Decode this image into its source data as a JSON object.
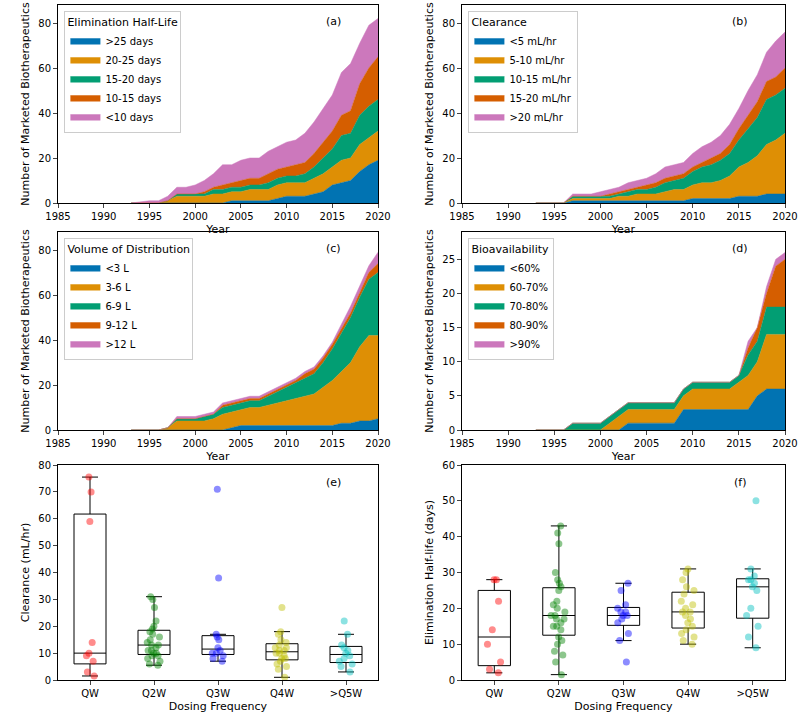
{
  "chart_data": [
    {
      "type": "area",
      "stacked": true,
      "legend": "upper left",
      "legend_title": "Elimination Half-Life",
      "annotations": [
        "(a)"
      ],
      "x_label": "Year",
      "y_label": "Number of Marketed Biotherapeutics",
      "grid": false,
      "x": [
        1993,
        1994,
        1995,
        1996,
        1997,
        1998,
        1999,
        2000,
        2001,
        2002,
        2003,
        2004,
        2005,
        2006,
        2007,
        2008,
        2009,
        2010,
        2011,
        2012,
        2013,
        2014,
        2015,
        2016,
        2017,
        2018,
        2019,
        2020
      ],
      "xlim": [
        1985,
        2020
      ],
      "xticks": [
        1985,
        1990,
        1995,
        2000,
        2005,
        2010,
        2015,
        2020
      ],
      "ylim": [
        0,
        88
      ],
      "yticks": [
        0,
        20,
        40,
        60,
        80
      ],
      "series": [
        {
          "name": ">25 days",
          "color": "#0173b2",
          "values": [
            0,
            0,
            0,
            0,
            0,
            0,
            0,
            0,
            0,
            0,
            0,
            1,
            1,
            1,
            1,
            1,
            2,
            3,
            3,
            3,
            4,
            5,
            8,
            9,
            10,
            14,
            17,
            19
          ]
        },
        {
          "name": "20-25 days",
          "color": "#de8f05",
          "values": [
            0,
            0,
            0,
            0,
            1,
            3,
            3,
            3,
            3,
            4,
            4,
            4,
            4,
            5,
            5,
            5,
            6,
            6,
            6,
            6,
            7,
            8,
            8,
            10,
            10,
            12,
            12,
            13
          ]
        },
        {
          "name": "15-20 days",
          "color": "#029e73",
          "values": [
            0,
            0,
            0,
            0,
            0,
            1,
            1,
            1,
            1,
            2,
            2,
            2,
            2,
            2,
            2,
            3,
            3,
            3,
            3,
            4,
            5,
            7,
            8,
            11,
            11,
            13,
            14,
            14
          ]
        },
        {
          "name": "10-15 days",
          "color": "#d55e00",
          "values": [
            0,
            0,
            0,
            0,
            0,
            0,
            0,
            0,
            1,
            1,
            2,
            2,
            3,
            3,
            3,
            4,
            4,
            4,
            5,
            5,
            6,
            7,
            8,
            9,
            10,
            14,
            17,
            19
          ]
        },
        {
          "name": "<10 days",
          "color": "#cc78bc",
          "values": [
            0,
            0.5,
            1,
            1,
            2,
            3,
            3,
            4,
            5,
            6,
            9,
            8,
            9,
            9,
            9,
            10,
            10,
            11,
            11,
            13,
            14,
            15,
            16,
            19,
            21,
            18,
            19,
            17
          ]
        }
      ]
    },
    {
      "type": "area",
      "stacked": true,
      "legend": "upper left",
      "legend_title": "Clearance",
      "annotations": [
        "(b)"
      ],
      "x_label": "Year",
      "y_label": "Number of Marketed Biotherapeutics",
      "grid": false,
      "x": [
        1993,
        1994,
        1995,
        1996,
        1997,
        1998,
        1999,
        2000,
        2001,
        2002,
        2003,
        2004,
        2005,
        2006,
        2007,
        2008,
        2009,
        2010,
        2011,
        2012,
        2013,
        2014,
        2015,
        2016,
        2017,
        2018,
        2019,
        2020
      ],
      "xlim": [
        1985,
        2020
      ],
      "xticks": [
        1985,
        1990,
        1995,
        2000,
        2005,
        2010,
        2015,
        2020
      ],
      "ylim": [
        0,
        88
      ],
      "yticks": [
        0,
        20,
        40,
        60,
        80
      ],
      "series": [
        {
          "name": "<5 mL/hr",
          "color": "#0173b2",
          "values": [
            0,
            0,
            0,
            0,
            1,
            1,
            1,
            1,
            1,
            1,
            1,
            1,
            1,
            1,
            1,
            1,
            1,
            2,
            2,
            2,
            2,
            2,
            3,
            3,
            3,
            4,
            4,
            4
          ]
        },
        {
          "name": "5-10 mL/hr",
          "color": "#de8f05",
          "values": [
            0,
            0,
            0,
            0,
            1,
            1,
            1,
            1,
            1,
            2,
            2,
            3,
            3,
            3,
            4,
            5,
            5,
            6,
            7,
            7,
            8,
            10,
            13,
            15,
            18,
            22,
            24,
            27
          ]
        },
        {
          "name": "10-15 mL/hr",
          "color": "#029e73",
          "values": [
            0,
            0,
            0,
            0,
            1,
            1,
            1,
            1,
            1,
            1,
            2,
            2,
            2,
            3,
            4,
            4,
            5,
            6,
            7,
            8,
            9,
            10,
            12,
            15,
            17,
            20,
            20,
            20
          ]
        },
        {
          "name": "15-20 mL/hr",
          "color": "#d55e00",
          "values": [
            0,
            0,
            0,
            0,
            0,
            0,
            0,
            0,
            1,
            1,
            1,
            1,
            2,
            2,
            2,
            2,
            2,
            2,
            2,
            3,
            3,
            4,
            5,
            6,
            7,
            8,
            8,
            9
          ]
        },
        {
          "name": ">20 mL/hr",
          "color": "#cc78bc",
          "values": [
            0,
            0,
            0,
            0,
            1,
            1,
            1,
            2,
            2,
            2,
            3,
            3,
            3,
            4,
            5,
            5,
            5,
            6,
            7,
            7,
            8,
            9,
            9,
            11,
            12,
            13,
            16,
            16
          ]
        }
      ]
    },
    {
      "type": "area",
      "stacked": true,
      "legend": "upper left",
      "legend_title": "Volume of Distribution",
      "annotations": [
        "(c)"
      ],
      "x_label": "Year",
      "y_label": "Number of Marketed Biotherapeutics",
      "grid": false,
      "x": [
        1993,
        1994,
        1995,
        1996,
        1997,
        1998,
        1999,
        2000,
        2001,
        2002,
        2003,
        2004,
        2005,
        2006,
        2007,
        2008,
        2009,
        2010,
        2011,
        2012,
        2013,
        2014,
        2015,
        2016,
        2017,
        2018,
        2019,
        2020
      ],
      "xlim": [
        1985,
        2020
      ],
      "xticks": [
        1985,
        1990,
        1995,
        2000,
        2005,
        2010,
        2015,
        2020
      ],
      "ylim": [
        0,
        88
      ],
      "yticks": [
        0,
        20,
        40,
        60,
        80
      ],
      "series": [
        {
          "name": "<3 L",
          "color": "#0173b2",
          "values": [
            0,
            0,
            0,
            0,
            0,
            0,
            0,
            0,
            0,
            0,
            0,
            1,
            2,
            2,
            2,
            2,
            2,
            2,
            2,
            2,
            2,
            2,
            2,
            3,
            3,
            4,
            4,
            5
          ]
        },
        {
          "name": "3-6 L",
          "color": "#de8f05",
          "values": [
            0,
            0,
            0,
            0,
            1,
            4,
            4,
            4,
            4,
            5,
            7,
            7,
            7,
            8,
            8,
            9,
            10,
            11,
            12,
            13,
            14,
            17,
            20,
            23,
            27,
            33,
            38,
            37
          ]
        },
        {
          "name": "6-9 L",
          "color": "#029e73",
          "values": [
            0,
            0,
            0,
            0,
            0,
            1,
            1,
            1,
            2,
            2,
            3,
            3,
            3,
            3,
            3,
            4,
            5,
            6,
            7,
            8,
            9,
            11,
            14,
            17,
            20,
            22,
            25,
            28
          ]
        },
        {
          "name": "9-12 L",
          "color": "#d55e00",
          "values": [
            0,
            0,
            0,
            0,
            0,
            0,
            0,
            0,
            0,
            0,
            1,
            1,
            1,
            1,
            1,
            1,
            1,
            1,
            1,
            2,
            2,
            2,
            2,
            2,
            2,
            2,
            3,
            4
          ]
        },
        {
          "name": ">12 L",
          "color": "#cc78bc",
          "values": [
            0,
            0,
            0,
            0,
            0,
            1,
            1,
            1,
            1,
            1,
            1,
            1,
            1,
            1,
            1,
            1,
            1,
            1,
            1,
            1,
            1,
            1,
            1,
            2,
            3,
            3,
            3,
            5
          ]
        }
      ]
    },
    {
      "type": "area",
      "stacked": true,
      "legend": "upper left",
      "legend_title": "Bioavailability",
      "annotations": [
        "(d)"
      ],
      "x_label": "Year",
      "y_label": "Number of Marketed Biotherapeutics",
      "grid": false,
      "x": [
        1993,
        1994,
        1995,
        1996,
        1997,
        1998,
        1999,
        2000,
        2001,
        2002,
        2003,
        2004,
        2005,
        2006,
        2007,
        2008,
        2009,
        2010,
        2011,
        2012,
        2013,
        2014,
        2015,
        2016,
        2017,
        2018,
        2019,
        2020
      ],
      "xlim": [
        1985,
        2020
      ],
      "xticks": [
        1985,
        1990,
        1995,
        2000,
        2005,
        2010,
        2015,
        2020
      ],
      "ylim": [
        0,
        29
      ],
      "yticks": [
        0,
        5,
        10,
        15,
        20,
        25
      ],
      "series": [
        {
          "name": "<60%",
          "color": "#0173b2",
          "values": [
            0,
            0,
            0,
            0,
            0,
            0,
            0,
            0,
            0,
            0,
            1,
            1,
            1,
            1,
            1,
            1,
            3,
            3,
            3,
            3,
            3,
            3,
            3,
            3,
            5,
            6,
            6,
            6
          ]
        },
        {
          "name": "60-70%",
          "color": "#de8f05",
          "values": [
            0,
            0,
            0,
            0,
            0,
            0,
            0,
            0,
            1,
            2,
            2,
            2,
            2,
            2,
            2,
            2,
            2,
            3,
            3,
            3,
            3,
            3,
            4,
            5,
            5,
            8,
            8,
            8
          ]
        },
        {
          "name": "70-80%",
          "color": "#029e73",
          "values": [
            0,
            0,
            0,
            0,
            1,
            1,
            1,
            1,
            1,
            1,
            1,
            1,
            1,
            1,
            1,
            1,
            1,
            1,
            1,
            1,
            1,
            1,
            1,
            3,
            3,
            4,
            4,
            4
          ]
        },
        {
          "name": "80-90%",
          "color": "#d55e00",
          "values": [
            0,
            0,
            0,
            0,
            0,
            0,
            0,
            0,
            0,
            0,
            0,
            0,
            0,
            0,
            0,
            0,
            0,
            0,
            0,
            0,
            0,
            0,
            0,
            1,
            2,
            2,
            6,
            7
          ]
        },
        {
          "name": ">90%",
          "color": "#cc78bc",
          "values": [
            0,
            0,
            0,
            0,
            0,
            0,
            0,
            0,
            0,
            0,
            0,
            0,
            0,
            0,
            0,
            0,
            0,
            0,
            0,
            0,
            0,
            0,
            0,
            1,
            0,
            1,
            1,
            1
          ]
        }
      ]
    },
    {
      "type": "box",
      "annotations": [
        "(e)"
      ],
      "x_label": "Dosing Frequency",
      "y_label": "Clearance (mL/hr)",
      "grid": false,
      "categories": [
        "QW",
        "Q2W",
        "Q3W",
        "Q4W",
        ">Q5W"
      ],
      "colors": [
        "#ff0000",
        "#008000",
        "#0000ff",
        "#bfbf00",
        "#00bfbf"
      ],
      "values": [
        [
          75.5,
          70,
          59,
          14,
          10,
          9,
          7,
          3,
          1.5
        ],
        [
          31,
          30,
          27,
          22,
          20,
          19,
          18,
          17,
          16,
          15,
          14,
          13,
          13,
          12,
          11,
          11,
          10,
          10,
          9,
          9,
          8,
          7,
          6,
          5.5
        ],
        [
          71,
          38,
          17,
          16,
          15,
          12,
          11,
          10,
          10,
          9,
          8,
          7
        ],
        [
          27,
          18,
          17,
          15,
          14,
          13,
          12,
          12,
          11,
          11,
          10,
          10,
          9,
          8,
          8,
          7,
          6,
          5,
          4,
          1
        ],
        [
          22,
          17,
          13,
          12,
          11,
          10,
          9,
          8,
          7,
          6,
          5,
          3
        ]
      ],
      "ylim": [
        0,
        80
      ],
      "yticks": [
        0,
        10,
        20,
        30,
        40,
        50,
        60,
        70,
        80
      ]
    },
    {
      "type": "box",
      "annotations": [
        "(f)"
      ],
      "x_label": "Dosing Frequency",
      "y_label": "Elimination Half-life (days)",
      "grid": false,
      "categories": [
        "QW",
        "Q2W",
        "Q3W",
        "Q4W",
        ">Q5W"
      ],
      "colors": [
        "#ff0000",
        "#008000",
        "#0000ff",
        "#bfbf00",
        "#00bfbf"
      ],
      "values": [
        [
          28,
          28,
          22,
          14,
          10,
          5,
          3,
          2
        ],
        [
          43,
          41,
          38,
          30,
          28,
          27,
          26,
          25,
          22,
          21,
          20,
          19,
          18,
          18,
          17,
          17,
          16,
          15,
          15,
          14,
          12,
          11,
          10,
          8,
          7,
          5,
          1.5
        ],
        [
          27,
          25,
          21,
          20,
          19,
          19,
          18,
          18,
          17,
          16,
          13,
          11,
          5
        ],
        [
          31,
          30,
          28,
          26,
          25,
          24,
          22,
          21,
          20,
          19,
          19,
          18,
          17,
          16,
          15,
          14,
          13,
          12,
          11,
          10
        ],
        [
          50,
          31,
          29,
          28,
          28,
          27,
          26,
          25,
          20,
          18,
          15,
          12,
          9
        ]
      ],
      "ylim": [
        0,
        60
      ],
      "yticks": [
        0,
        10,
        20,
        30,
        40,
        50,
        60
      ]
    }
  ]
}
